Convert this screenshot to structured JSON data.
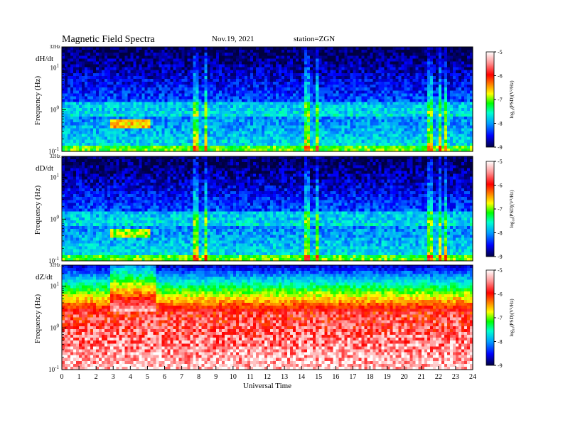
{
  "header": {
    "title": "Magnetic  Field  Spectra",
    "date": "Nov.19, 2021",
    "station": "station=ZGN"
  },
  "chart_data": {
    "type": "heatmap",
    "x": {
      "label": "Universal Time",
      "range": [
        0,
        24
      ],
      "ticks": [
        "0",
        "1",
        "2",
        "3",
        "4",
        "5",
        "6",
        "7",
        "8",
        "9",
        "10",
        "11",
        "12",
        "13",
        "14",
        "15",
        "16",
        "17",
        "18",
        "19",
        "20",
        "21",
        "22",
        "23",
        "24"
      ]
    },
    "y": {
      "label": "Frequency  (Hz)",
      "scale": "log",
      "range_hz": [
        0.1,
        32
      ],
      "ticks": [
        {
          "value": 0.1,
          "base": "10",
          "exp": "-1"
        },
        {
          "value": 1,
          "base": "10",
          "exp": "0"
        },
        {
          "value": 10,
          "base": "10",
          "exp": "1"
        }
      ],
      "top_label": "32Hz"
    },
    "colorbar": {
      "label": "log₁₀(PSD)(V²/Hz)",
      "range": [
        -9,
        -5
      ],
      "ticks": [
        "-5",
        "-6",
        "-7",
        "-8",
        "-9"
      ],
      "colors": [
        "#000040",
        "#0000ff",
        "#00a0ff",
        "#00ffd0",
        "#00ff00",
        "#ffff00",
        "#ff8000",
        "#ff0000",
        "#ff9090",
        "#ffffff"
      ]
    },
    "panels": [
      {
        "name": "dH/dt"
      },
      {
        "name": "dD/dt"
      },
      {
        "name": "dZ/dt"
      }
    ]
  }
}
